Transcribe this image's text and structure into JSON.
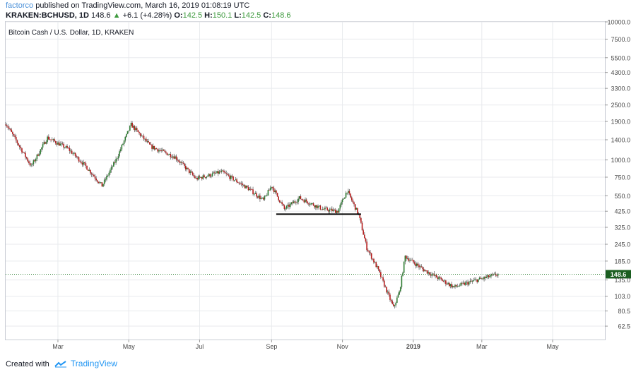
{
  "header": {
    "author": "factorco",
    "published_text": "published on TradingView.com, March 16, 2019 01:08:19 UTC",
    "symbol": "KRAKEN:BCHUSD, 1D",
    "last": "148.6",
    "change": "+6.1 (+4.28%)",
    "o_label": "O:",
    "o_value": "142.5",
    "h_label": "H:",
    "h_value": "150.1",
    "l_label": "L:",
    "l_value": "142.5",
    "c_label": "C:",
    "c_value": "148.6"
  },
  "footer": {
    "created_with": "Created with",
    "brand": "TradingView"
  },
  "colors": {
    "up": "#2e7d32",
    "down": "#b71c1c",
    "wick": "#6d6d6d",
    "grid": "#e8eaed",
    "price_line": "#2e7d32",
    "price_tag": "#1b5e20",
    "support_line": "#000000"
  },
  "chart_data": {
    "type": "candlestick",
    "title": "Bitcoin Cash / U.S. Dollar, 1D, KRAKEN",
    "y_scale": "log",
    "y_range": [
      50,
      10000
    ],
    "y_ticks": [
      62.5,
      80.5,
      103.0,
      135.0,
      185.0,
      245.0,
      325.0,
      425.0,
      550.0,
      750.0,
      1000.0,
      1400.0,
      1900.0,
      2500.0,
      3300.0,
      4300.0,
      5500.0,
      7500.0,
      10000.0
    ],
    "y_tick_labels": [
      "62.5",
      "80.5",
      "103.0",
      "135.0",
      "185.0",
      "245.0",
      "325.0",
      "425.0",
      "550.0",
      "750.0",
      "1000.0",
      "1400.0",
      "1900.0",
      "2500.0",
      "3300.0",
      "4300.0",
      "5500.0",
      "7500.0",
      "10000.0"
    ],
    "x_range": [
      "2018-01-15",
      "2019-06-15"
    ],
    "x_ticks": [
      "2018-03-01",
      "2018-05-01",
      "2018-07-01",
      "2018-09-01",
      "2018-11-01",
      "2019-01-01",
      "2019-03-01",
      "2019-05-01"
    ],
    "x_tick_labels": [
      "Mar",
      "May",
      "Jul",
      "Sep",
      "Nov",
      "2019",
      "Mar",
      "May"
    ],
    "last_price": 148.6,
    "last_price_label": "148.6",
    "support_line": {
      "from": "2018-09-05",
      "to": "2018-11-17",
      "price": 405
    },
    "grid": true,
    "key_closes": [
      {
        "date": "2018-01-15",
        "close": 1850
      },
      {
        "date": "2018-02-06",
        "close": 900
      },
      {
        "date": "2018-02-20",
        "close": 1450
      },
      {
        "date": "2018-03-10",
        "close": 1200
      },
      {
        "date": "2018-03-25",
        "close": 900
      },
      {
        "date": "2018-04-08",
        "close": 650
      },
      {
        "date": "2018-04-20",
        "close": 1000
      },
      {
        "date": "2018-05-03",
        "close": 1800
      },
      {
        "date": "2018-05-20",
        "close": 1250
      },
      {
        "date": "2018-06-10",
        "close": 1050
      },
      {
        "date": "2018-06-28",
        "close": 730
      },
      {
        "date": "2018-07-20",
        "close": 820
      },
      {
        "date": "2018-08-12",
        "close": 620
      },
      {
        "date": "2018-08-25",
        "close": 510
      },
      {
        "date": "2018-09-01",
        "close": 650
      },
      {
        "date": "2018-09-12",
        "close": 440
      },
      {
        "date": "2018-09-25",
        "close": 530
      },
      {
        "date": "2018-10-15",
        "close": 440
      },
      {
        "date": "2018-10-28",
        "close": 425
      },
      {
        "date": "2018-11-05",
        "close": 600
      },
      {
        "date": "2018-11-15",
        "close": 400
      },
      {
        "date": "2018-11-22",
        "close": 230
      },
      {
        "date": "2018-12-01",
        "close": 165
      },
      {
        "date": "2018-12-15",
        "close": 85
      },
      {
        "date": "2018-12-20",
        "close": 110
      },
      {
        "date": "2018-12-25",
        "close": 200
      },
      {
        "date": "2019-01-10",
        "close": 160
      },
      {
        "date": "2019-02-05",
        "close": 120
      },
      {
        "date": "2019-02-25",
        "close": 135
      },
      {
        "date": "2019-03-15",
        "close": 148.6
      }
    ]
  }
}
